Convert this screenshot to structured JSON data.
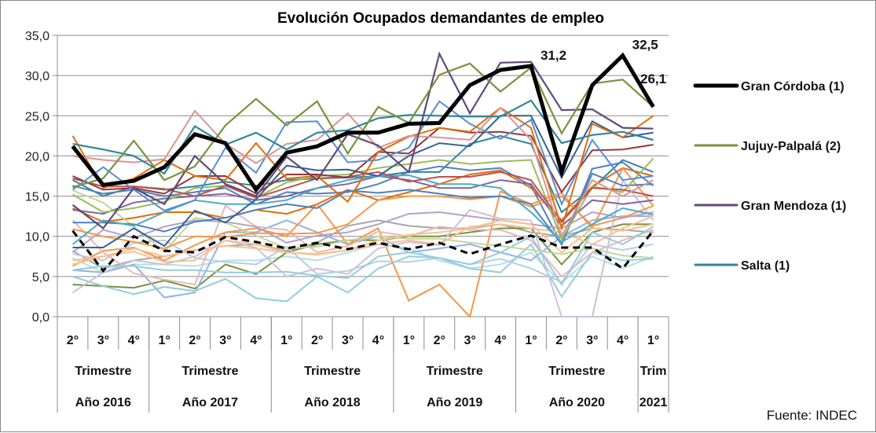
{
  "chart_data": {
    "type": "line",
    "title": "Evolución Ocupados demandantes de empleo",
    "source": "Fuente: INDEC",
    "ylim": [
      0,
      35
    ],
    "yticks": [
      "0,0",
      "5,0",
      "10,0",
      "15,0",
      "20,0",
      "25,0",
      "30,0",
      "35,0"
    ],
    "grid": true,
    "legend_position": "right",
    "x_quarters": [
      "2°",
      "3°",
      "4°",
      "1°",
      "2°",
      "3°",
      "4°",
      "1°",
      "2°",
      "3°",
      "4°",
      "1°",
      "2°",
      "3°",
      "4°",
      "1°",
      "2°",
      "3°",
      "4°",
      "1°"
    ],
    "x_groups": [
      {
        "row1": "Trimestre",
        "row2": "Año 2016",
        "count": 3
      },
      {
        "row1": "Trimestre",
        "row2": "Año 2017",
        "count": 4
      },
      {
        "row1": "Trimestre",
        "row2": "Año 2018",
        "count": 4
      },
      {
        "row1": "Trimestre",
        "row2": "Año 2019",
        "count": 4
      },
      {
        "row1": "Trimestre",
        "row2": "Año 2020",
        "count": 4
      },
      {
        "row1": "Trim",
        "row2": "2021",
        "count": 1
      }
    ],
    "data_labels": [
      {
        "series": 0,
        "index": 15,
        "text": "31,2"
      },
      {
        "series": 0,
        "index": 18,
        "text": "32,5"
      },
      {
        "series": 0,
        "index": 19,
        "text": "26,1"
      }
    ],
    "series": [
      {
        "name": "Gran Córdoba (1)",
        "color": "#000000",
        "width": 5,
        "legend": true,
        "values": [
          21.2,
          16.4,
          16.9,
          18.6,
          22.7,
          21.6,
          15.8,
          20.4,
          21.2,
          22.9,
          22.9,
          24.0,
          24.1,
          28.8,
          30.7,
          31.2,
          18.0,
          28.8,
          32.5,
          26.1
        ]
      },
      {
        "name": "Jujuy-Palpalá (2)",
        "color": "#77933C",
        "width": 2.2,
        "legend": true,
        "values": [
          16.1,
          17.2,
          21.9,
          17.0,
          18.7,
          23.8,
          27.1,
          23.8,
          26.8,
          20.3,
          26.1,
          24.1,
          30.1,
          31.5,
          28.0,
          31.0,
          22.8,
          29.0,
          29.5,
          26.1
        ]
      },
      {
        "name": "Gran Mendoza  (1)",
        "color": "#604A7B",
        "width": 2.2,
        "legend": true,
        "values": [
          13.9,
          11.0,
          16.0,
          14.0,
          20.0,
          16.5,
          15.0,
          19.9,
          17.0,
          22.7,
          21.3,
          18.0,
          32.7,
          25.3,
          31.6,
          31.7,
          25.7,
          25.8,
          23.5,
          23.4
        ]
      },
      {
        "name": "Salta (1)",
        "color": "#31859C",
        "width": 2.2,
        "legend": true,
        "values": [
          21.5,
          20.8,
          20.0,
          17.8,
          23.7,
          21.4,
          22.9,
          20.8,
          22.9,
          23.2,
          24.7,
          25.1,
          25.0,
          24.9,
          24.9,
          26.9,
          21.6,
          22.6,
          23.0,
          22.0
        ]
      },
      {
        "color": "#000000",
        "width": 3,
        "dashed": true,
        "values": [
          10.7,
          5.7,
          10.0,
          8.2,
          8.0,
          9.9,
          9.3,
          8.5,
          9.2,
          8.4,
          9.2,
          8.4,
          9.2,
          7.8,
          9.0,
          10.1,
          8.6,
          8.6,
          6.0,
          10.7
        ]
      },
      {
        "color": "#D99694",
        "values": [
          20.0,
          19.5,
          19.2,
          19.6,
          25.6,
          21.5,
          19.1,
          21.5,
          22.0,
          25.3,
          21.0,
          22.5,
          22.3,
          22.0,
          26.0,
          22.0,
          10.0,
          17.0,
          15.0,
          17.0
        ]
      },
      {
        "color": "#E46C0A",
        "values": [
          22.5,
          16.0,
          17.2,
          19.5,
          17.5,
          17.0,
          21.6,
          17.2,
          17.5,
          14.3,
          20.5,
          22.4,
          23.5,
          23.0,
          26.0,
          23.5,
          11.0,
          24.0,
          22.3,
          25.0
        ]
      },
      {
        "color": "#558ED5",
        "values": [
          15.8,
          18.6,
          15.8,
          13.2,
          14.5,
          21.0,
          17.9,
          24.2,
          24.3,
          19.2,
          19.5,
          21.0,
          26.8,
          24.0,
          22.1,
          24.5,
          14.0,
          22.0,
          17.0,
          17.5
        ]
      },
      {
        "color": "#953735",
        "values": [
          17.5,
          15.8,
          16.0,
          15.3,
          17.5,
          17.5,
          15.3,
          17.7,
          17.7,
          17.3,
          20.5,
          20.3,
          23.5,
          22.9,
          23.0,
          22.5,
          15.5,
          20.7,
          20.8,
          21.4
        ]
      },
      {
        "color": "#376092",
        "values": [
          8.6,
          8.6,
          11.0,
          8.8,
          13.2,
          11.7,
          14.6,
          18.8,
          18.2,
          18.3,
          17.5,
          20.0,
          21.6,
          21.2,
          25.0,
          25.0,
          17.3,
          24.3,
          22.3,
          22.9
        ]
      },
      {
        "color": "#C0504D",
        "values": [
          17.2,
          16.2,
          16.2,
          15.9,
          15.0,
          16.3,
          14.8,
          16.0,
          17.2,
          17.4,
          18.0,
          16.8,
          17.4,
          17.4,
          18.0,
          17.0,
          11.8,
          16.0,
          15.8,
          15.0
        ]
      },
      {
        "color": "#9BBB59",
        "values": [
          15.2,
          13.0,
          13.5,
          14.3,
          16.0,
          16.3,
          14.8,
          16.7,
          17.5,
          17.7,
          18.5,
          19.0,
          19.5,
          19.0,
          19.3,
          19.5,
          9.6,
          16.2,
          15.5,
          19.7
        ]
      },
      {
        "color": "#4BACC6",
        "values": [
          9.0,
          12.0,
          11.3,
          13.0,
          14.5,
          14.0,
          14.0,
          14.5,
          16.0,
          17.0,
          17.5,
          17.6,
          16.5,
          16.5,
          16.0,
          13.0,
          9.3,
          11.5,
          13.5,
          12.7
        ]
      },
      {
        "color": "#8064A2",
        "values": [
          13.3,
          12.8,
          14.2,
          14.7,
          15.0,
          15.3,
          14.5,
          15.0,
          16.0,
          16.5,
          17.5,
          17.0,
          16.0,
          16.0,
          17.0,
          16.5,
          11.3,
          14.5,
          14.0,
          14.5
        ]
      },
      {
        "color": "#4F81BD",
        "values": [
          11.7,
          11.7,
          11.5,
          10.6,
          11.8,
          12.3,
          13.3,
          14.0,
          13.5,
          15.7,
          15.4,
          15.8,
          15.3,
          14.8,
          15.0,
          14.0,
          9.0,
          17.8,
          16.3,
          16.5
        ]
      },
      {
        "color": "#F79646",
        "values": [
          10.9,
          10.0,
          9.3,
          8.5,
          10.0,
          9.9,
          10.4,
          10.3,
          10.4,
          11.5,
          14.5,
          15.0,
          15.0,
          14.6,
          15.0,
          13.7,
          15.0,
          11.3,
          12.3,
          13.8
        ]
      },
      {
        "color": "#FAC090",
        "values": [
          7.0,
          7.5,
          8.5,
          7.5,
          8.3,
          8.8,
          8.5,
          8.0,
          7.7,
          8.3,
          9.5,
          10.2,
          10.5,
          11.0,
          12.0,
          11.5,
          8.0,
          11.0,
          10.7,
          11.5
        ]
      },
      {
        "color": "#B3A2C7",
        "values": [
          8.0,
          10.8,
          9.8,
          11.2,
          12.0,
          11.8,
          11.2,
          9.2,
          10.1,
          10.5,
          11.5,
          12.8,
          13.0,
          12.5,
          12.0,
          11.5,
          11.0,
          13.0,
          12.3,
          13.0
        ]
      },
      {
        "color": "#C3D69B",
        "values": [
          15.7,
          14.2,
          11.2,
          8.1,
          12.3,
          11.7,
          10.1,
          8.5,
          8.7,
          9.5,
          10.0,
          9.7,
          9.7,
          9.2,
          8.8,
          8.3,
          7.8,
          8.5,
          7.6,
          7.3
        ]
      },
      {
        "color": "#93CDDD",
        "values": [
          5.8,
          6.3,
          6.3,
          5.8,
          5.8,
          5.5,
          5.5,
          5.6,
          5.1,
          4.8,
          7.5,
          8.0,
          7.3,
          6.5,
          8.0,
          10.0,
          4.0,
          10.5,
          9.0,
          11.2
        ]
      },
      {
        "color": "#E6B9B8",
        "values": [
          12.0,
          8.0,
          5.4,
          4.6,
          4.0,
          13.8,
          11.2,
          10.8,
          8.0,
          8.8,
          10.6,
          10.0,
          11.2,
          10.8,
          10.8,
          9.5,
          5.0,
          8.0,
          9.5,
          10.8
        ]
      },
      {
        "color": "#FAC090",
        "values": [
          6.5,
          7.5,
          8.1,
          6.8,
          7.0,
          9.5,
          9.0,
          8.0,
          7.8,
          8.3,
          9.0,
          9.5,
          9.0,
          11.2,
          11.5,
          11.0,
          10.5,
          9.0,
          11.0,
          12.5
        ]
      },
      {
        "color": "#B9CDE5",
        "values": [
          7.8,
          7.0,
          9.2,
          9.5,
          7.3,
          6.8,
          6.5,
          8.7,
          5.3,
          5.7,
          6.9,
          6.8,
          7.3,
          6.5,
          7.2,
          6.0,
          4.3,
          9.0,
          8.3,
          9.0
        ]
      },
      {
        "color": "#CCC1DA",
        "values": [
          3.0,
          5.5,
          7.0,
          6.5,
          7.5,
          9.5,
          8.6,
          5.0,
          6.0,
          5.3,
          8.5,
          9.3,
          8.9,
          13.3,
          12.2,
          12.0,
          0.0,
          0.0,
          17.0,
          12.0
        ]
      },
      {
        "color": "#F79646",
        "values": [
          6.3,
          8.2,
          8.6,
          7.0,
          8.9,
          10.5,
          11.0,
          10.0,
          14.0,
          9.0,
          11.0,
          2.0,
          4.0,
          0.0,
          15.6,
          14.0,
          15.4,
          11.0,
          18.5,
          13.8
        ]
      },
      {
        "color": "#92CDDC",
        "values": [
          5.0,
          3.8,
          2.8,
          3.7,
          3.2,
          4.7,
          2.3,
          1.9,
          5.0,
          3.0,
          6.0,
          7.5,
          7.3,
          6.0,
          5.5,
          9.0,
          2.5,
          8.0,
          7.0,
          7.2
        ]
      },
      {
        "color": "#8EB4E3",
        "values": [
          5.8,
          5.5,
          6.5,
          2.4,
          3.0,
          10.5,
          10.5,
          12.0,
          10.5,
          9.0,
          10.0,
          8.0,
          8.5,
          9.0,
          8.0,
          7.0,
          10.0,
          12.0,
          12.5,
          12.5
        ]
      },
      {
        "color": "#77933C",
        "values": [
          4.0,
          3.8,
          3.6,
          4.5,
          3.5,
          6.5,
          5.3,
          8.0,
          9.0,
          9.5,
          9.5,
          10.0,
          10.0,
          10.5,
          11.0,
          11.0,
          6.5,
          10.5,
          11.5,
          11.5
        ]
      },
      {
        "color": "#B7DEE8",
        "values": [
          7.3,
          5.5,
          6.5,
          6.5,
          6.3,
          7.0,
          7.0,
          7.5,
          7.0,
          8.0,
          9.0,
          8.5,
          7.0,
          6.0,
          6.5,
          8.0,
          4.2,
          7.5,
          6.0,
          7.5
        ]
      },
      {
        "color": "#A6A6A6",
        "values": [
          8.2,
          6.0,
          7.0,
          7.5,
          8.3,
          8.8,
          9.0,
          8.2,
          9.2,
          11.3,
          12.0,
          11.3,
          11.0,
          11.0,
          11.5,
          10.5,
          10.0,
          11.0,
          10.8,
          10.5
        ]
      },
      {
        "color": "#E46C0A",
        "values": [
          13.5,
          11.8,
          12.3,
          13.0,
          13.0,
          12.3,
          13.3,
          12.8,
          14.0,
          15.8,
          14.5,
          15.5,
          16.5,
          17.7,
          18.2,
          16.0,
          12.0,
          16.2,
          18.5,
          17.5
        ]
      },
      {
        "color": "#4F81BD",
        "values": [
          16.3,
          15.3,
          15.8,
          15.0,
          15.5,
          16.0,
          14.0,
          15.5,
          15.3,
          15.5,
          16.5,
          18.0,
          18.7,
          18.2,
          18.5,
          16.3,
          9.0,
          18.4,
          19.2,
          16.3
        ]
      },
      {
        "color": "#31859C",
        "values": [
          17.0,
          15.0,
          16.2,
          15.8,
          16.2,
          16.8,
          16.3,
          17.0,
          17.2,
          17.3,
          17.5,
          18.0,
          18.0,
          21.5,
          22.5,
          21.5,
          13.0,
          16.0,
          19.5,
          18.0
        ]
      }
    ]
  }
}
